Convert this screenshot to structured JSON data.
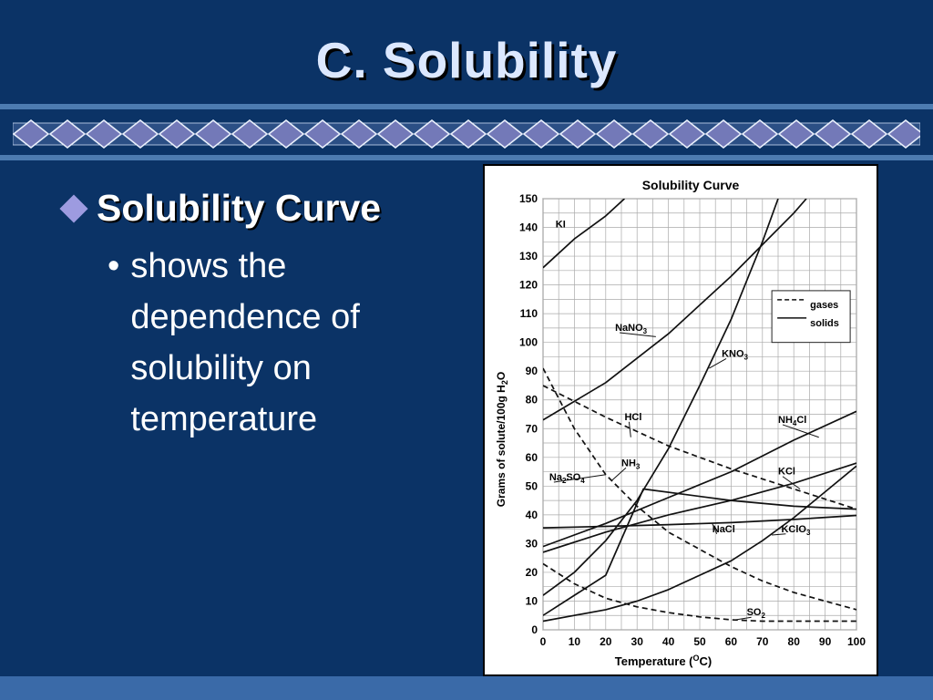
{
  "slide": {
    "title": "C. Solubility",
    "bullet": "Solubility Curve",
    "sub_bullet": "shows the dependence of solubility on temperature"
  },
  "colors": {
    "background": "#0b3366",
    "band": "#4d7bb0",
    "diamond_fill": "#7379b8",
    "title": "#dce8ff"
  },
  "chart_data": {
    "type": "line",
    "title": "Solubility Curve",
    "xlabel": "Temperature (°C)",
    "ylabel": "Grams of solute/100g H₂O",
    "xlim": [
      0,
      100
    ],
    "ylim": [
      0,
      150
    ],
    "xticks": [
      0,
      10,
      20,
      30,
      40,
      50,
      60,
      70,
      80,
      90,
      100
    ],
    "yticks": [
      0,
      10,
      20,
      30,
      40,
      50,
      60,
      70,
      80,
      90,
      100,
      110,
      120,
      130,
      140,
      150
    ],
    "grid": true,
    "legend": {
      "placement": "right",
      "entries": [
        {
          "label": "gases",
          "style": "dashed"
        },
        {
          "label": "solids",
          "style": "solid"
        }
      ]
    },
    "series": [
      {
        "name": "KI",
        "style": "solid",
        "x": [
          0,
          10,
          20,
          26
        ],
        "y": [
          126,
          136,
          144,
          150
        ]
      },
      {
        "name": "NaNO3",
        "style": "solid",
        "x": [
          0,
          20,
          40,
          60,
          80,
          84
        ],
        "y": [
          73,
          86,
          103,
          123,
          145,
          150
        ]
      },
      {
        "name": "KNO3",
        "style": "solid",
        "x": [
          0,
          10,
          20,
          30,
          40,
          50,
          60,
          70,
          75
        ],
        "y": [
          12,
          20,
          31,
          45,
          63,
          85,
          108,
          135,
          150
        ]
      },
      {
        "name": "HCl",
        "style": "dashed",
        "x": [
          0,
          20,
          40,
          60,
          80,
          100
        ],
        "y": [
          85,
          74,
          64,
          56,
          49,
          42
        ]
      },
      {
        "name": "NH4Cl",
        "style": "solid",
        "x": [
          0,
          20,
          40,
          60,
          80,
          100
        ],
        "y": [
          29,
          37,
          46,
          55,
          66,
          76
        ]
      },
      {
        "name": "NH3",
        "style": "dashed",
        "x": [
          0,
          10,
          20,
          30,
          40,
          50,
          60,
          70,
          80,
          90,
          100
        ],
        "y": [
          91,
          70,
          54,
          43,
          34,
          28,
          22,
          17,
          13,
          10,
          7
        ]
      },
      {
        "name": "Na2SO4",
        "style": "solid",
        "x": [
          0,
          20,
          32,
          60,
          80,
          100
        ],
        "y": [
          5,
          19,
          49,
          45,
          43,
          42
        ]
      },
      {
        "name": "KCl",
        "style": "solid",
        "x": [
          0,
          20,
          40,
          60,
          80,
          100
        ],
        "y": [
          27,
          34,
          40,
          45,
          51,
          58
        ]
      },
      {
        "name": "NaCl",
        "style": "solid",
        "x": [
          0,
          20,
          40,
          60,
          80,
          100
        ],
        "y": [
          35.5,
          36,
          36.6,
          37.3,
          38.4,
          39.8
        ]
      },
      {
        "name": "KClO3",
        "style": "solid",
        "x": [
          0,
          10,
          20,
          30,
          40,
          50,
          60,
          70,
          80,
          90,
          100
        ],
        "y": [
          3,
          5,
          7,
          10,
          14,
          19,
          24,
          31,
          39,
          48,
          57
        ]
      },
      {
        "name": "SO2",
        "style": "dashed",
        "x": [
          0,
          10,
          20,
          30,
          40,
          50,
          60,
          70,
          80,
          90,
          100
        ],
        "y": [
          23,
          16,
          11,
          8,
          6,
          4.5,
          3.5,
          3,
          3,
          3,
          3
        ]
      }
    ]
  }
}
